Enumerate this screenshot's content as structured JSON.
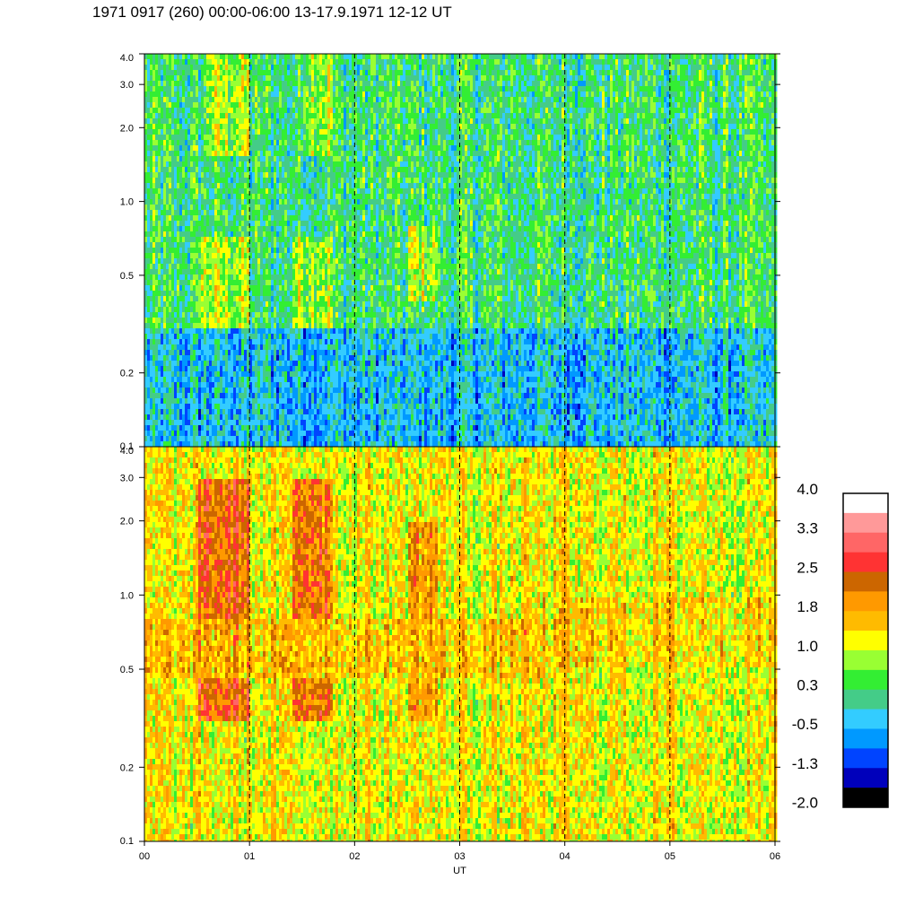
{
  "title": "1971 0917 (260) 00:00-06:00 13-17.9.1971  12-12 UT",
  "chart_data": {
    "type": "heatmap",
    "xlabel": "UT",
    "x_ticks": [
      "00",
      "01",
      "02",
      "03",
      "04",
      "05",
      "06"
    ],
    "xlim": [
      0,
      6
    ],
    "y_scale": "log",
    "y_ticks": [
      "0.1",
      "0.2",
      "0.5",
      "1.0",
      "2.0",
      "3.0",
      "4.0"
    ],
    "y_tick_values": [
      0.1,
      0.2,
      0.5,
      1.0,
      2.0,
      3.0,
      4.0
    ],
    "ylim": [
      0.1,
      4.0
    ],
    "dashed_vertical_lines_at": [
      1,
      2,
      3,
      4,
      5
    ],
    "panels": [
      {
        "name": "upper panel",
        "base_level": 0.2,
        "features": [
          {
            "x_range": [
              0.5,
              1.0
            ],
            "y_range": [
              0.3,
              0.7
            ],
            "level": 1.0
          },
          {
            "x_range": [
              1.4,
              1.8
            ],
            "y_range": [
              0.3,
              0.7
            ],
            "level": 1.0
          },
          {
            "x_range": [
              2.5,
              2.8
            ],
            "y_range": [
              0.4,
              0.8
            ],
            "level": 1.0
          },
          {
            "x_range": [
              0.6,
              1.0
            ],
            "y_range": [
              1.5,
              4.0
            ],
            "level": 1.0
          },
          {
            "x_range": [
              1.5,
              1.8
            ],
            "y_range": [
              1.5,
              4.0
            ],
            "level": 1.0
          },
          {
            "x_range": [
              0.0,
              6.0
            ],
            "y_range": [
              0.1,
              0.3
            ],
            "level": -0.5
          }
        ]
      },
      {
        "name": "lower panel",
        "base_level": 1.2,
        "features": [
          {
            "x_range": [
              0.5,
              1.0
            ],
            "y_range": [
              0.3,
              3.0
            ],
            "level": 2.5
          },
          {
            "x_range": [
              1.4,
              1.8
            ],
            "y_range": [
              0.3,
              3.0
            ],
            "level": 2.5
          },
          {
            "x_range": [
              2.5,
              2.8
            ],
            "y_range": [
              0.3,
              2.0
            ],
            "level": 2.0
          },
          {
            "x_range": [
              0.0,
              3.8
            ],
            "y_range": [
              0.45,
              0.8
            ],
            "level": 1.6
          },
          {
            "x_range": [
              3.8,
              6.0
            ],
            "y_range": [
              0.5,
              1.0
            ],
            "level": 1.5
          }
        ]
      }
    ],
    "colorbar": {
      "labels": [
        "4.0",
        "3.3",
        "2.5",
        "1.8",
        "1.0",
        "0.3",
        "-0.5",
        "-1.3",
        "-2.0"
      ],
      "range": [
        -2.0,
        4.0
      ],
      "colors": [
        "#ffffff",
        "#ff9999",
        "#ff6666",
        "#ff3333",
        "#cc6600",
        "#ff9900",
        "#ffbb00",
        "#ffff00",
        "#99ff33",
        "#33ee33",
        "#44cc88",
        "#33ccff",
        "#0099ff",
        "#0044ff",
        "#0000bb",
        "#000000"
      ]
    }
  }
}
